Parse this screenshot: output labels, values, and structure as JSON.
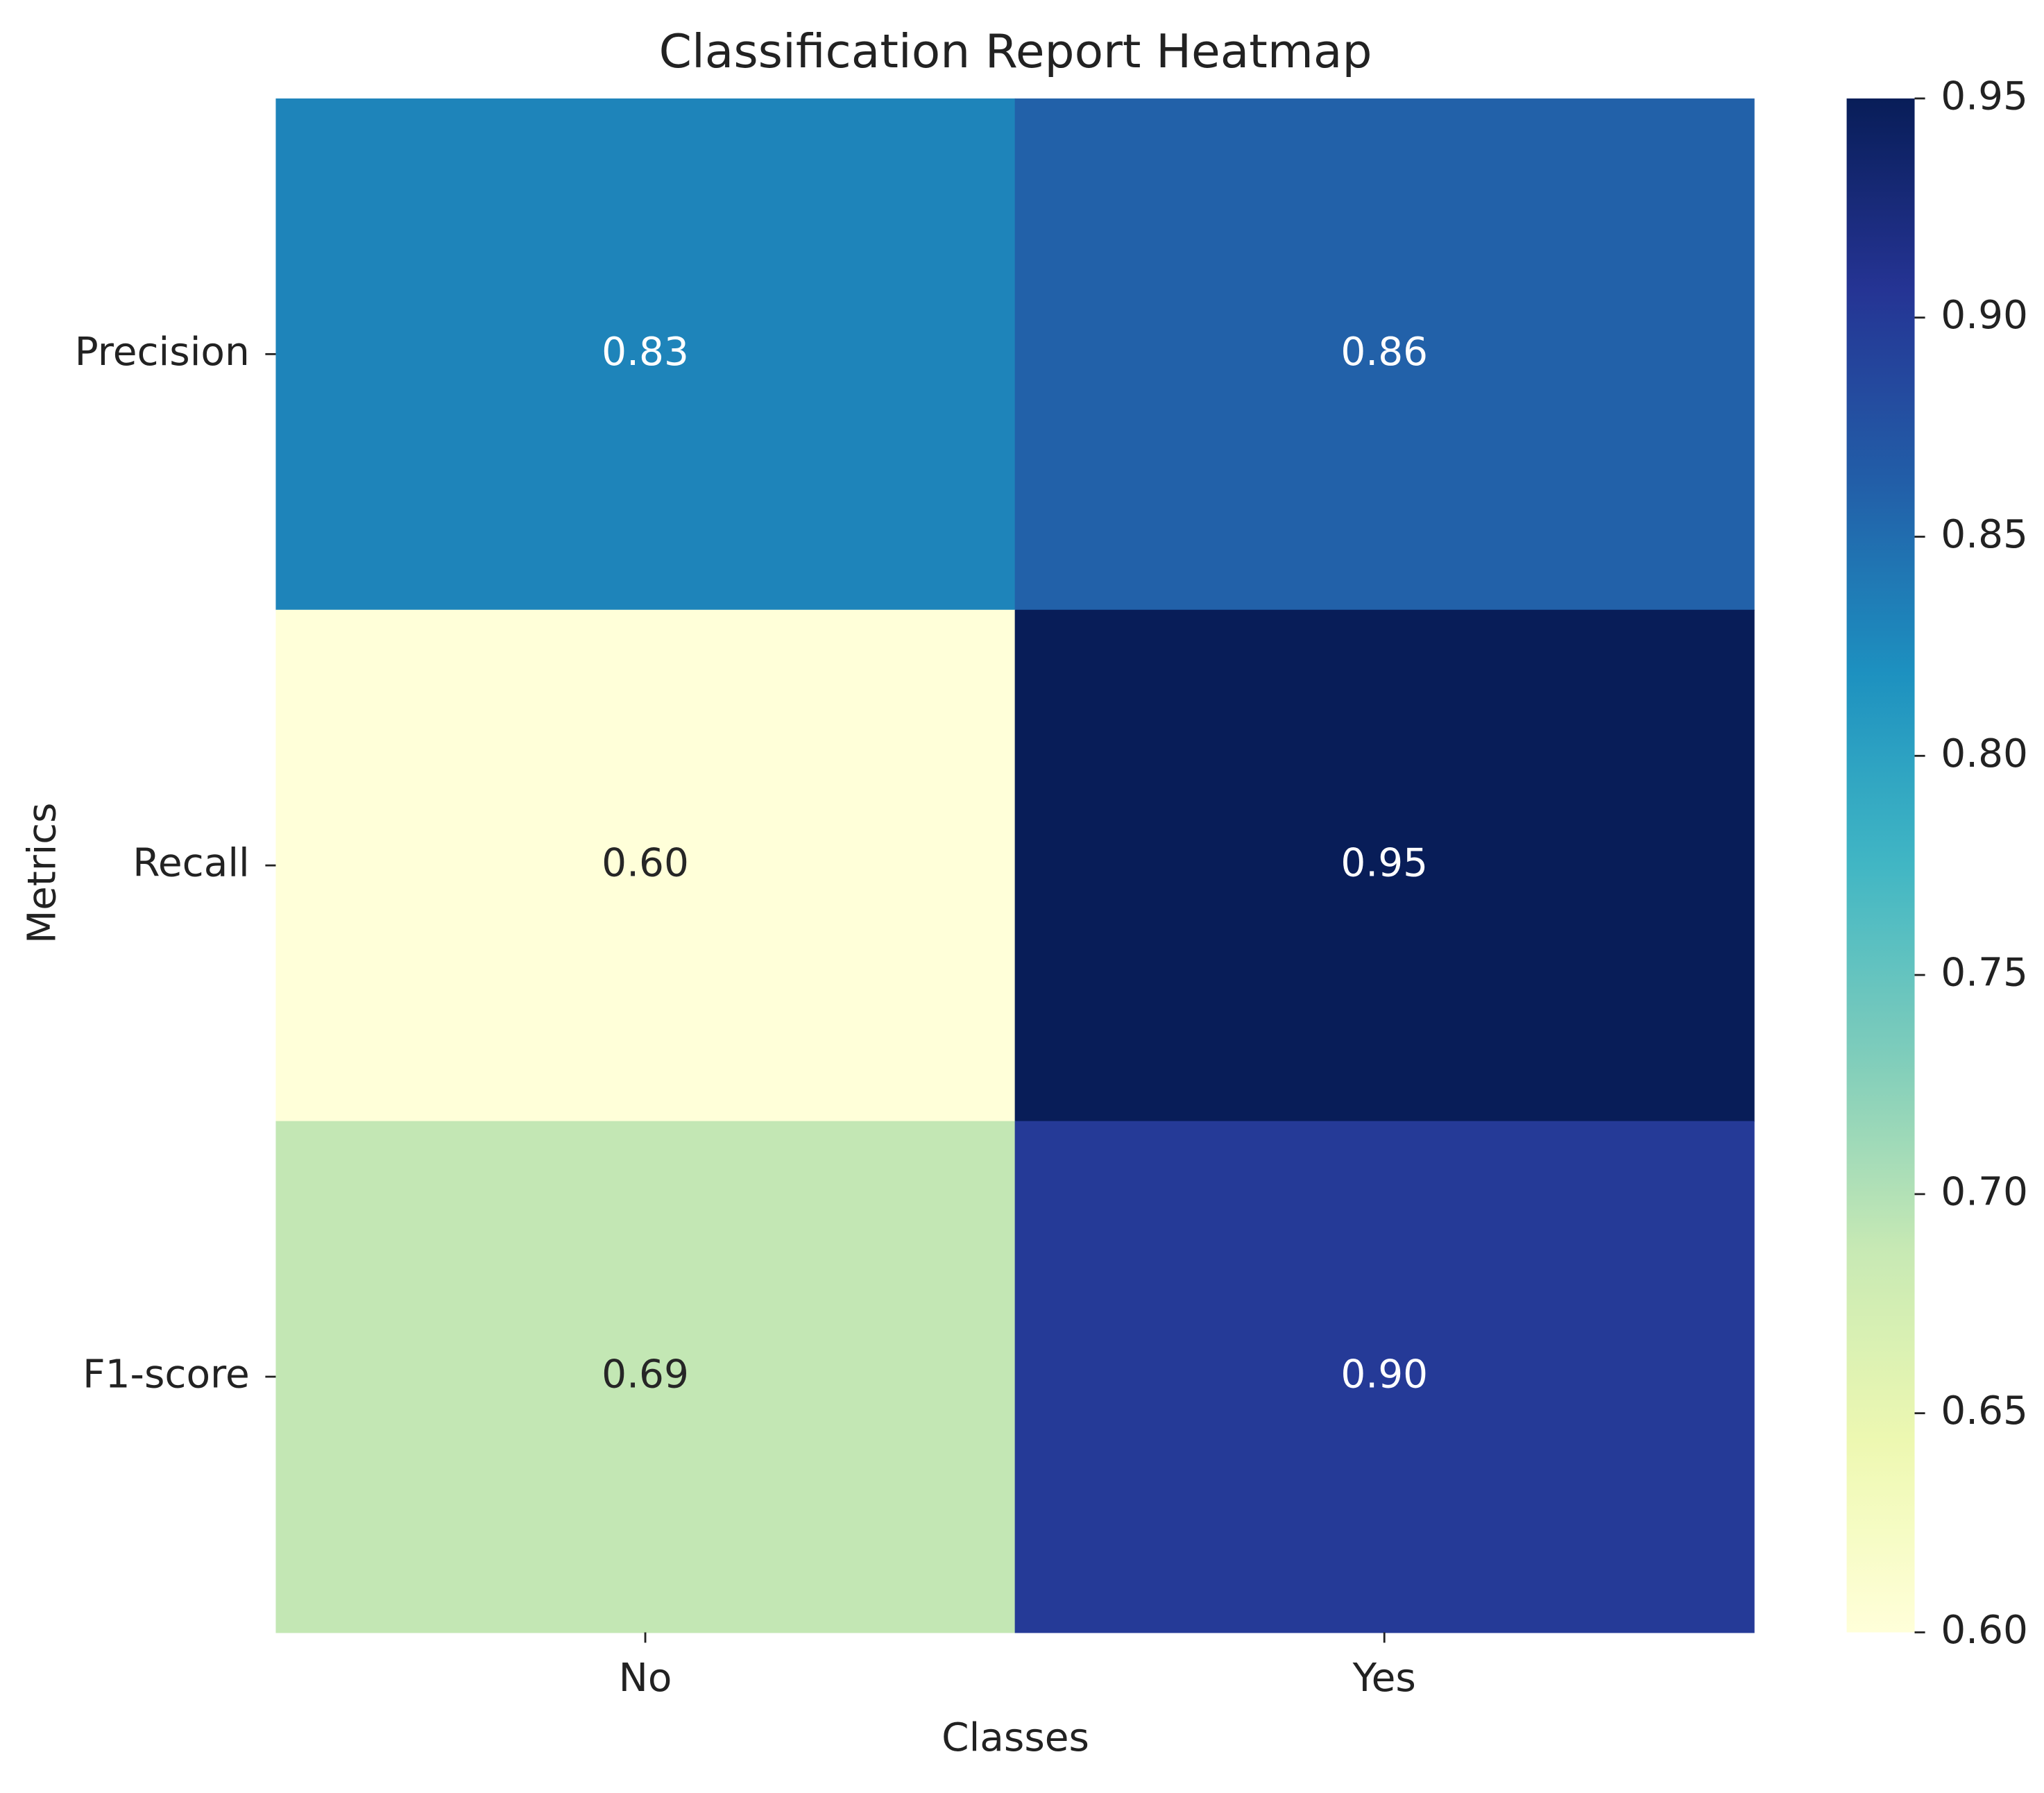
{
  "chart_data": {
    "type": "heatmap",
    "title": "Classification Report Heatmap",
    "xlabel": "Classes",
    "ylabel": "Metrics",
    "x_categories": [
      "No",
      "Yes"
    ],
    "y_categories": [
      "Precision",
      "Recall",
      "F1-score"
    ],
    "values": [
      [
        0.83,
        0.86
      ],
      [
        0.6,
        0.95
      ],
      [
        0.69,
        0.9
      ]
    ],
    "value_labels": [
      [
        "0.83",
        "0.86"
      ],
      [
        "0.60",
        "0.95"
      ],
      [
        "0.69",
        "0.90"
      ]
    ],
    "colormap": "YlGnBu",
    "clim": [
      0.6,
      0.95
    ],
    "cticks": [
      {
        "value": 0.6,
        "label": "0.60"
      },
      {
        "value": 0.65,
        "label": "0.65"
      },
      {
        "value": 0.7,
        "label": "0.70"
      },
      {
        "value": 0.75,
        "label": "0.75"
      },
      {
        "value": 0.8,
        "label": "0.80"
      },
      {
        "value": 0.85,
        "label": "0.85"
      },
      {
        "value": 0.9,
        "label": "0.90"
      },
      {
        "value": 0.95,
        "label": "0.95"
      }
    ]
  }
}
